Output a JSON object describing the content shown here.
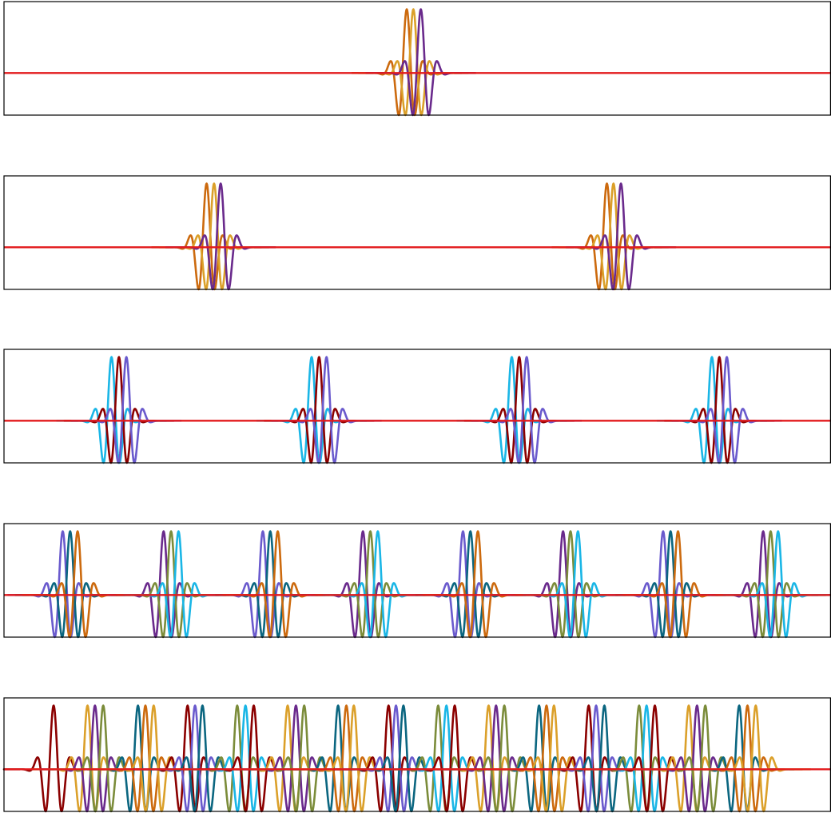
{
  "chart_data": [
    {
      "type": "line",
      "title": "",
      "xlabel": "",
      "ylabel": "",
      "grid": false,
      "axis_ticks": false,
      "xlim": [
        0,
        1
      ],
      "ylim": [
        -0.33,
        0.56
      ],
      "baseline": {
        "y": 0,
        "color": "#e31a1c"
      },
      "wavelet_envelope_sigma": 0.011,
      "wavelet_frequency": 0.021,
      "series": [
        {
          "center": 0.487,
          "color": "#cc6a0e"
        },
        {
          "center": 0.495,
          "color": "#dba02a"
        },
        {
          "center": 0.504,
          "color": "#6a2a8c"
        }
      ]
    },
    {
      "type": "line",
      "title": "",
      "xlabel": "",
      "ylabel": "",
      "grid": false,
      "axis_ticks": false,
      "xlim": [
        0,
        1
      ],
      "ylim": [
        -0.33,
        0.56
      ],
      "baseline": {
        "y": 0,
        "color": "#e31a1c"
      },
      "wavelet_envelope_sigma": 0.011,
      "wavelet_frequency": 0.021,
      "series": [
        {
          "center": 0.245,
          "color": "#cc6a0e"
        },
        {
          "center": 0.254,
          "color": "#dba02a"
        },
        {
          "center": 0.262,
          "color": "#6a2a8c"
        },
        {
          "center": 0.729,
          "color": "#cc6a0e"
        },
        {
          "center": 0.737,
          "color": "#dba02a"
        },
        {
          "center": 0.746,
          "color": "#6a2a8c"
        }
      ]
    },
    {
      "type": "line",
      "title": "",
      "xlabel": "",
      "ylabel": "",
      "grid": false,
      "axis_ticks": false,
      "xlim": [
        0,
        1
      ],
      "ylim": [
        -0.33,
        0.56
      ],
      "baseline": {
        "y": 0,
        "color": "#e31a1c"
      },
      "wavelet_envelope_sigma": 0.011,
      "wavelet_frequency": 0.021,
      "series": [
        {
          "center": 0.13,
          "color": "#1ab6e6"
        },
        {
          "center": 0.139,
          "color": "#8b0000"
        },
        {
          "center": 0.148,
          "color": "#6a5acd"
        },
        {
          "center": 0.372,
          "color": "#1ab6e6"
        },
        {
          "center": 0.381,
          "color": "#8b0000"
        },
        {
          "center": 0.39,
          "color": "#6a5acd"
        },
        {
          "center": 0.614,
          "color": "#1ab6e6"
        },
        {
          "center": 0.623,
          "color": "#8b0000"
        },
        {
          "center": 0.632,
          "color": "#6a5acd"
        },
        {
          "center": 0.856,
          "color": "#1ab6e6"
        },
        {
          "center": 0.865,
          "color": "#8b0000"
        },
        {
          "center": 0.874,
          "color": "#6a5acd"
        }
      ]
    },
    {
      "type": "line",
      "title": "",
      "xlabel": "",
      "ylabel": "",
      "grid": false,
      "axis_ticks": false,
      "xlim": [
        0,
        1
      ],
      "ylim": [
        -0.33,
        0.56
      ],
      "baseline": {
        "y": 0,
        "color": "#e31a1c"
      },
      "wavelet_envelope_sigma": 0.011,
      "wavelet_frequency": 0.021,
      "series": [
        {
          "center": 0.071,
          "color": "#6a5acd"
        },
        {
          "center": 0.08,
          "color": "#0b6680"
        },
        {
          "center": 0.089,
          "color": "#cc6a0e"
        },
        {
          "center": 0.193,
          "color": "#6a2a8c"
        },
        {
          "center": 0.202,
          "color": "#7b8c3a"
        },
        {
          "center": 0.211,
          "color": "#1ab6e6"
        },
        {
          "center": 0.313,
          "color": "#6a5acd"
        },
        {
          "center": 0.322,
          "color": "#0b6680"
        },
        {
          "center": 0.331,
          "color": "#cc6a0e"
        },
        {
          "center": 0.434,
          "color": "#6a2a8c"
        },
        {
          "center": 0.443,
          "color": "#7b8c3a"
        },
        {
          "center": 0.452,
          "color": "#1ab6e6"
        },
        {
          "center": 0.555,
          "color": "#6a5acd"
        },
        {
          "center": 0.564,
          "color": "#0b6680"
        },
        {
          "center": 0.573,
          "color": "#cc6a0e"
        },
        {
          "center": 0.676,
          "color": "#6a2a8c"
        },
        {
          "center": 0.685,
          "color": "#7b8c3a"
        },
        {
          "center": 0.694,
          "color": "#1ab6e6"
        },
        {
          "center": 0.797,
          "color": "#6a5acd"
        },
        {
          "center": 0.806,
          "color": "#0b6680"
        },
        {
          "center": 0.815,
          "color": "#cc6a0e"
        },
        {
          "center": 0.918,
          "color": "#6a2a8c"
        },
        {
          "center": 0.927,
          "color": "#7b8c3a"
        },
        {
          "center": 0.936,
          "color": "#1ab6e6"
        }
      ]
    },
    {
      "type": "line",
      "title": "",
      "xlabel": "",
      "ylabel": "",
      "grid": false,
      "axis_ticks": false,
      "xlim": [
        0,
        1
      ],
      "ylim": [
        -0.33,
        0.56
      ],
      "baseline": {
        "y": 0,
        "color": "#e31a1c"
      },
      "wavelet_envelope_sigma": 0.011,
      "wavelet_frequency": 0.021,
      "series": [
        {
          "center": 0.06,
          "color": "#8b0000"
        },
        {
          "center": 0.101,
          "color": "#dba02a"
        },
        {
          "center": 0.11,
          "color": "#6a2a8c"
        },
        {
          "center": 0.12,
          "color": "#7b8c3a"
        },
        {
          "center": 0.162,
          "color": "#0b6680"
        },
        {
          "center": 0.171,
          "color": "#cc6a0e"
        },
        {
          "center": 0.181,
          "color": "#dba02a"
        },
        {
          "center": 0.222,
          "color": "#8b0000"
        },
        {
          "center": 0.231,
          "color": "#6a5acd"
        },
        {
          "center": 0.24,
          "color": "#0b6680"
        },
        {
          "center": 0.282,
          "color": "#7b8c3a"
        },
        {
          "center": 0.292,
          "color": "#1ab6e6"
        },
        {
          "center": 0.302,
          "color": "#8b0000"
        },
        {
          "center": 0.343,
          "color": "#dba02a"
        },
        {
          "center": 0.353,
          "color": "#6a2a8c"
        },
        {
          "center": 0.363,
          "color": "#7b8c3a"
        },
        {
          "center": 0.404,
          "color": "#0b6680"
        },
        {
          "center": 0.414,
          "color": "#cc6a0e"
        },
        {
          "center": 0.423,
          "color": "#dba02a"
        },
        {
          "center": 0.465,
          "color": "#8b0000"
        },
        {
          "center": 0.474,
          "color": "#6a5acd"
        },
        {
          "center": 0.483,
          "color": "#0b6680"
        },
        {
          "center": 0.525,
          "color": "#7b8c3a"
        },
        {
          "center": 0.535,
          "color": "#1ab6e6"
        },
        {
          "center": 0.545,
          "color": "#8b0000"
        },
        {
          "center": 0.586,
          "color": "#dba02a"
        },
        {
          "center": 0.595,
          "color": "#6a2a8c"
        },
        {
          "center": 0.605,
          "color": "#7b8c3a"
        },
        {
          "center": 0.647,
          "color": "#0b6680"
        },
        {
          "center": 0.656,
          "color": "#cc6a0e"
        },
        {
          "center": 0.665,
          "color": "#dba02a"
        },
        {
          "center": 0.707,
          "color": "#8b0000"
        },
        {
          "center": 0.716,
          "color": "#6a5acd"
        },
        {
          "center": 0.726,
          "color": "#0b6680"
        },
        {
          "center": 0.768,
          "color": "#7b8c3a"
        },
        {
          "center": 0.777,
          "color": "#1ab6e6"
        },
        {
          "center": 0.787,
          "color": "#8b0000"
        },
        {
          "center": 0.828,
          "color": "#dba02a"
        },
        {
          "center": 0.838,
          "color": "#6a2a8c"
        },
        {
          "center": 0.848,
          "color": "#7b8c3a"
        },
        {
          "center": 0.889,
          "color": "#0b6680"
        },
        {
          "center": 0.899,
          "color": "#cc6a0e"
        },
        {
          "center": 0.909,
          "color": "#dba02a"
        }
      ]
    }
  ]
}
